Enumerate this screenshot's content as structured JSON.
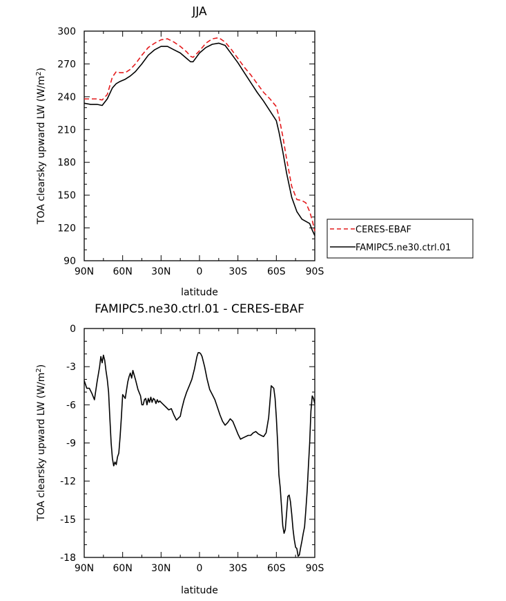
{
  "chart_data": [
    {
      "type": "line",
      "title": "JJA",
      "xlabel": "latitude",
      "ylabel": "TOA clearsky upward LW (W/m²)",
      "ylabel_main": "TOA clearsky upward LW (W/m",
      "ylabel_exp": "2",
      "ylabel_close": ")",
      "xlim": [
        90,
        -90
      ],
      "ylim": [
        90,
        300
      ],
      "xticks": [
        {
          "value": 90,
          "label": "90N"
        },
        {
          "value": 60,
          "label": "60N"
        },
        {
          "value": 30,
          "label": "30N"
        },
        {
          "value": 0,
          "label": "0"
        },
        {
          "value": -30,
          "label": "30S"
        },
        {
          "value": -60,
          "label": "60S"
        },
        {
          "value": -90,
          "label": "90S"
        }
      ],
      "yticks": [
        90,
        120,
        150,
        180,
        210,
        240,
        270,
        300
      ],
      "legend_position": "right",
      "series": [
        {
          "name": "CERES-EBAF",
          "color": "#e41a1c",
          "dash": "dashed",
          "x": [
            90,
            85,
            80,
            76,
            72,
            68,
            65,
            62,
            58,
            54,
            50,
            45,
            40,
            35,
            30,
            25,
            20,
            15,
            10,
            7,
            5,
            0,
            -5,
            -10,
            -15,
            -20,
            -25,
            -30,
            -35,
            -40,
            -45,
            -50,
            -55,
            -60,
            -62,
            -65,
            -68,
            -72,
            -76,
            -80,
            -83,
            -86,
            -88,
            -90
          ],
          "y": [
            238,
            238,
            238,
            237,
            242,
            258,
            263,
            262,
            262,
            265,
            270,
            278,
            285,
            289,
            292,
            293,
            290,
            286,
            281,
            277,
            276,
            282,
            289,
            293,
            294,
            290,
            283,
            275,
            267,
            260,
            252,
            244,
            238,
            231,
            222,
            204,
            183,
            158,
            146,
            145,
            143,
            135,
            127,
            117
          ]
        },
        {
          "name": "FAMIPC5.ne30.ctrl.01",
          "color": "#000000",
          "dash": "solid",
          "x": [
            90,
            85,
            80,
            76,
            72,
            68,
            65,
            62,
            58,
            54,
            50,
            45,
            40,
            35,
            30,
            25,
            20,
            15,
            10,
            7,
            5,
            0,
            -5,
            -10,
            -15,
            -20,
            -25,
            -30,
            -35,
            -40,
            -45,
            -50,
            -55,
            -60,
            -62,
            -65,
            -68,
            -72,
            -76,
            -80,
            -83,
            -86,
            -88,
            -90
          ],
          "y": [
            234,
            233,
            233,
            232,
            238,
            248,
            252,
            254,
            256,
            259,
            263,
            270,
            278,
            283,
            286,
            286,
            283,
            280,
            275,
            272,
            272,
            280,
            285,
            288,
            289,
            287,
            279,
            271,
            262,
            253,
            244,
            236,
            227,
            218,
            208,
            190,
            170,
            148,
            135,
            128,
            126,
            124,
            118,
            113
          ]
        }
      ]
    },
    {
      "type": "line",
      "title": "FAMIPC5.ne30.ctrl.01 - CERES-EBAF",
      "xlabel": "latitude",
      "ylabel": "TOA clearsky upward LW (W/m²)",
      "ylabel_main": "TOA clearsky upward LW (W/m",
      "ylabel_exp": "2",
      "ylabel_close": ")",
      "xlim": [
        90,
        -90
      ],
      "ylim": [
        -18,
        0
      ],
      "xticks": [
        {
          "value": 90,
          "label": "90N"
        },
        {
          "value": 60,
          "label": "60N"
        },
        {
          "value": 30,
          "label": "30N"
        },
        {
          "value": 0,
          "label": "0"
        },
        {
          "value": -30,
          "label": "30S"
        },
        {
          "value": -60,
          "label": "60S"
        },
        {
          "value": -90,
          "label": "90S"
        }
      ],
      "yticks": [
        0,
        -3,
        -6,
        -9,
        -12,
        -15,
        -18
      ],
      "series": [
        {
          "color": "#000000",
          "dash": "solid",
          "x": [
            90,
            88,
            86,
            84,
            82,
            80,
            78,
            77,
            76,
            75,
            74,
            73,
            72,
            71,
            70,
            69,
            68,
            67,
            66,
            65,
            64,
            63,
            62,
            61,
            60,
            58,
            56,
            55,
            54,
            53,
            52,
            50,
            48,
            46,
            45,
            44,
            43,
            42,
            41,
            40,
            39,
            38,
            37,
            36,
            35,
            34,
            33,
            32,
            31,
            30,
            28,
            26,
            24,
            22,
            20,
            18,
            16,
            15,
            14,
            12,
            10,
            8,
            6,
            4,
            2,
            1,
            0,
            -1,
            -2,
            -4,
            -6,
            -8,
            -10,
            -12,
            -14,
            -16,
            -18,
            -20,
            -22,
            -24,
            -26,
            -28,
            -30,
            -32,
            -34,
            -36,
            -38,
            -40,
            -42,
            -44,
            -46,
            -48,
            -50,
            -52,
            -54,
            -56,
            -58,
            -59,
            -60,
            -61,
            -62,
            -63,
            -64,
            -65,
            -66,
            -67,
            -68,
            -69,
            -70,
            -71,
            -72,
            -73,
            -74,
            -75,
            -76,
            -77,
            -78,
            -79,
            -80,
            -81,
            -82,
            -83,
            -84,
            -85,
            -86,
            -87,
            -88,
            -89,
            -90
          ],
          "y": [
            -4.1,
            -4.7,
            -4.7,
            -5.1,
            -5.6,
            -4.2,
            -3.0,
            -2.2,
            -2.7,
            -2.1,
            -2.5,
            -3.3,
            -4.0,
            -5.0,
            -7.0,
            -9.0,
            -10.2,
            -10.8,
            -10.5,
            -10.7,
            -10.1,
            -9.8,
            -8.5,
            -7.0,
            -5.2,
            -5.5,
            -4.2,
            -3.8,
            -3.5,
            -3.9,
            -3.3,
            -4.0,
            -4.8,
            -5.3,
            -6.0,
            -6.0,
            -5.6,
            -5.5,
            -6.0,
            -5.5,
            -5.8,
            -5.4,
            -5.8,
            -5.5,
            -5.6,
            -5.9,
            -5.6,
            -5.8,
            -5.7,
            -5.8,
            -6.0,
            -6.2,
            -6.4,
            -6.3,
            -6.8,
            -7.2,
            -7.0,
            -6.9,
            -6.4,
            -5.6,
            -5.0,
            -4.5,
            -4.0,
            -3.2,
            -2.2,
            -1.9,
            -1.9,
            -2.0,
            -2.2,
            -3.0,
            -4.0,
            -4.8,
            -5.2,
            -5.6,
            -6.2,
            -6.8,
            -7.3,
            -7.6,
            -7.4,
            -7.1,
            -7.3,
            -7.8,
            -8.3,
            -8.7,
            -8.6,
            -8.5,
            -8.4,
            -8.4,
            -8.2,
            -8.1,
            -8.3,
            -8.4,
            -8.5,
            -8.2,
            -7.0,
            -4.5,
            -4.7,
            -5.5,
            -7.0,
            -9.0,
            -11.5,
            -12.5,
            -14.0,
            -15.5,
            -16.1,
            -15.8,
            -14.5,
            -13.2,
            -13.1,
            -13.6,
            -14.6,
            -15.8,
            -16.6,
            -17.2,
            -17.3,
            -17.9,
            -17.8,
            -17.2,
            -16.7,
            -16.1,
            -15.6,
            -14.3,
            -12.8,
            -10.9,
            -9.0,
            -6.5,
            -5.3,
            -5.5,
            -5.9
          ]
        }
      ]
    }
  ],
  "legend_entries": [
    "CERES-EBAF",
    "FAMIPC5.ne30.ctrl.01"
  ]
}
